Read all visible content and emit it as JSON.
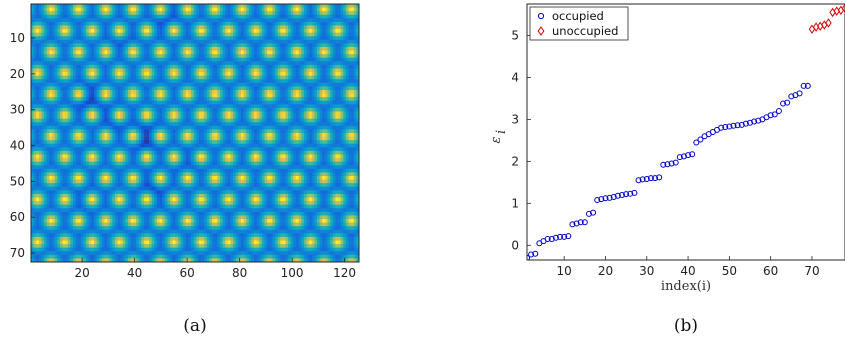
{
  "chart_data": [
    {
      "type": "heatmap",
      "title": "",
      "xlabel": "",
      "ylabel": "",
      "xlim": [
        1,
        125
      ],
      "ylim": [
        1,
        72
      ],
      "x_ticks": [
        20,
        40,
        60,
        80,
        100,
        120
      ],
      "y_ticks": [
        10,
        20,
        30,
        40,
        50,
        60,
        70
      ],
      "y_reversed": true,
      "colormap": "parula",
      "caption": "(a)"
    },
    {
      "type": "scatter",
      "title": "",
      "xlabel": "index(i)",
      "ylabel": "ε",
      "ylabel_sub": "i",
      "xlim": [
        1,
        78
      ],
      "ylim": [
        -0.35,
        5.75
      ],
      "x_ticks": [
        10,
        20,
        30,
        40,
        50,
        60,
        70
      ],
      "y_ticks": [
        0,
        1,
        2,
        3,
        4,
        5
      ],
      "legend_position": "top-left",
      "caption": "(b)",
      "series": [
        {
          "name": "occupied",
          "marker": "circle",
          "color": "#0000cc",
          "x": [
            1,
            2,
            3,
            4,
            5,
            6,
            7,
            8,
            9,
            10,
            11,
            12,
            13,
            14,
            15,
            16,
            17,
            18,
            19,
            20,
            21,
            22,
            23,
            24,
            25,
            26,
            27,
            28,
            29,
            30,
            31,
            32,
            33,
            34,
            35,
            36,
            37,
            38,
            39,
            40,
            41,
            42,
            43,
            44,
            45,
            46,
            47,
            48,
            49,
            50,
            51,
            52,
            53,
            54,
            55,
            56,
            57,
            58,
            59,
            60,
            61,
            62,
            63,
            64,
            65,
            66,
            67,
            68,
            69
          ],
          "y": [
            -0.3,
            -0.22,
            -0.2,
            0.05,
            0.1,
            0.15,
            0.15,
            0.18,
            0.2,
            0.2,
            0.22,
            0.5,
            0.52,
            0.55,
            0.55,
            0.75,
            0.78,
            1.08,
            1.1,
            1.12,
            1.13,
            1.15,
            1.18,
            1.2,
            1.22,
            1.23,
            1.25,
            1.55,
            1.57,
            1.58,
            1.6,
            1.6,
            1.62,
            1.92,
            1.93,
            1.95,
            1.97,
            2.1,
            2.12,
            2.15,
            2.17,
            2.45,
            2.52,
            2.6,
            2.65,
            2.7,
            2.75,
            2.8,
            2.82,
            2.83,
            2.85,
            2.86,
            2.87,
            2.9,
            2.92,
            2.95,
            2.97,
            3.0,
            3.05,
            3.1,
            3.12,
            3.2,
            3.38,
            3.4,
            3.55,
            3.58,
            3.62,
            3.8,
            3.8
          ]
        },
        {
          "name": "unoccupied",
          "marker": "diamond",
          "color": "#dd0000",
          "x": [
            70,
            71,
            72,
            73,
            74,
            75,
            76,
            77,
            78
          ],
          "y": [
            5.15,
            5.2,
            5.22,
            5.25,
            5.3,
            5.55,
            5.58,
            5.6,
            5.65
          ]
        }
      ]
    }
  ]
}
